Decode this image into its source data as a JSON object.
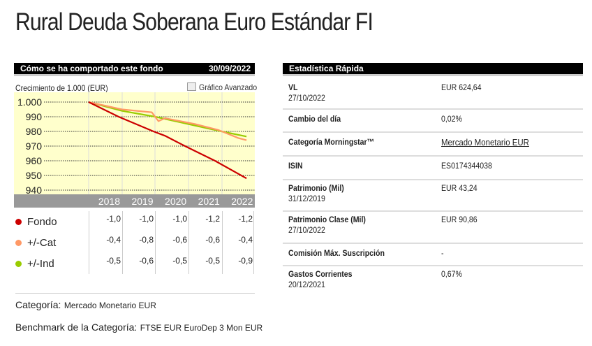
{
  "title": "Rural Deuda Soberana Euro Estándar FI",
  "performance": {
    "header": "Cómo se ha comportado este fondo",
    "date": "30/09/2022",
    "growth_label": "Crecimiento de 1.000 (EUR)",
    "advanced_chart": "Gráfico Avanzado"
  },
  "chart_data": {
    "type": "line",
    "title": "Crecimiento de 1.000 (EUR)",
    "ylim": [
      940,
      1000
    ],
    "yticks": [
      "1.000",
      "990",
      "980",
      "970",
      "960",
      "950",
      "940"
    ],
    "ytick_values": [
      1000,
      990,
      980,
      970,
      960,
      950,
      940
    ],
    "categories": [
      "2018",
      "2019",
      "2020",
      "2021",
      "2022"
    ],
    "xlim": [
      2018,
      2023
    ],
    "series": [
      {
        "name": "Fondo",
        "color": "#cc0000",
        "x": [
          2018,
          2018.9,
          2019.95,
          2020.3,
          2020.9,
          2021.8,
          2022.75
        ],
        "y": [
          1000,
          990,
          980,
          977,
          970,
          960,
          948
        ]
      },
      {
        "name": "+/-Cat",
        "color": "#ff9966",
        "x": [
          2018,
          2019,
          2019.9,
          2020.1,
          2020.3,
          2021.2,
          2021.9,
          2022.5,
          2022.75
        ],
        "y": [
          1000,
          995,
          993,
          987,
          989,
          985,
          981,
          975.5,
          974
        ]
      },
      {
        "name": "+/-Ind",
        "color": "#99cc00",
        "x": [
          2018,
          2019,
          2020,
          2021,
          2022,
          2022.75
        ],
        "y": [
          1000,
          994,
          990,
          985,
          980,
          976.5
        ]
      }
    ]
  },
  "returns": {
    "rows": [
      {
        "label": "Fondo",
        "color": "#cc0000",
        "values": [
          "-1,0",
          "-1,0",
          "-1,0",
          "-1,2",
          "-1,2"
        ]
      },
      {
        "label": "+/-Cat",
        "color": "#ff9966",
        "values": [
          "-0,4",
          "-0,8",
          "-0,6",
          "-0,6",
          "-0,4"
        ]
      },
      {
        "label": "+/-Ind",
        "color": "#99cc00",
        "values": [
          "-0,5",
          "-0,6",
          "-0,5",
          "-0,5",
          "-0,9"
        ]
      }
    ]
  },
  "category": {
    "label": "Categoría:",
    "value": "Mercado Monetario EUR"
  },
  "benchmark": {
    "label": "Benchmark de la Categoría:",
    "value": "FTSE EUR EuroDep 3 Mon EUR"
  },
  "stats": {
    "header": "Estadística Rápida",
    "rows": [
      {
        "label": "VL",
        "sub": "27/10/2022",
        "value": "EUR 624,64"
      },
      {
        "label": "Cambio del día",
        "sub": "",
        "value": "0,02%"
      },
      {
        "label": "Categoría Morningstar™",
        "sub": "",
        "value": "Mercado Monetario EUR",
        "link": true
      },
      {
        "label": "ISIN",
        "sub": "",
        "value": "ES0174344038"
      },
      {
        "label": "Patrimonio (Mil)",
        "sub": "31/12/2019",
        "value": "EUR 43,24"
      },
      {
        "label": "Patrimonio Clase (Mil)",
        "sub": "27/10/2022",
        "value": "EUR 90,86"
      },
      {
        "label": "Comisión Máx. Suscripción",
        "sub": "",
        "value": "-"
      },
      {
        "label": "Gastos Corrientes",
        "sub": "20/12/2021",
        "value": "0,67%"
      }
    ]
  }
}
